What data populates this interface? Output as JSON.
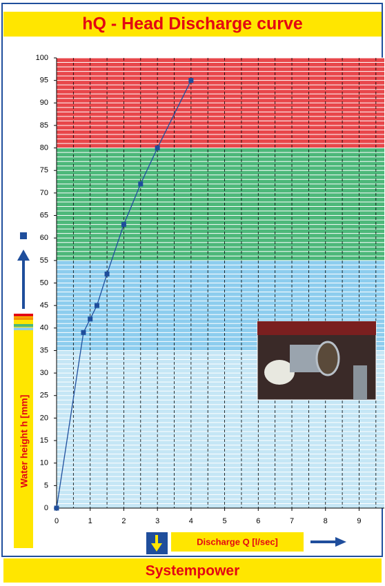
{
  "chart_data": {
    "type": "line",
    "title": "hQ - Head Discharge curve",
    "footer": "Systempower",
    "x_label": "Discharge Q [l/sec]",
    "y_label": "Water height h [mm]",
    "x": [
      0,
      0.8,
      1,
      1.2,
      1.5,
      2,
      2.5,
      3,
      4
    ],
    "series": [
      {
        "color": "#1f4e9c",
        "values": [
          0,
          39,
          42,
          45,
          52,
          63,
          72,
          80,
          95
        ]
      }
    ],
    "xlim": [
      0,
      9.75
    ],
    "ylim": [
      0,
      100
    ],
    "xticks": [
      0,
      1,
      2,
      3,
      4,
      5,
      6,
      7,
      8,
      9
    ],
    "yticks": [
      0,
      5,
      10,
      15,
      20,
      25,
      30,
      35,
      40,
      45,
      50,
      55,
      60,
      65,
      70,
      75,
      80,
      85,
      90,
      95,
      100
    ],
    "minor_step": {
      "x": 0.5,
      "y": 1
    },
    "bands": [
      {
        "from": 0,
        "to": 35,
        "color": "#c5e6f5"
      },
      {
        "from": 35,
        "to": 55,
        "color": "#8dcdee"
      },
      {
        "from": 55,
        "to": 80,
        "color": "#4db87a"
      },
      {
        "from": 80,
        "to": 100,
        "color": "#e8474b"
      }
    ],
    "grid": true
  }
}
